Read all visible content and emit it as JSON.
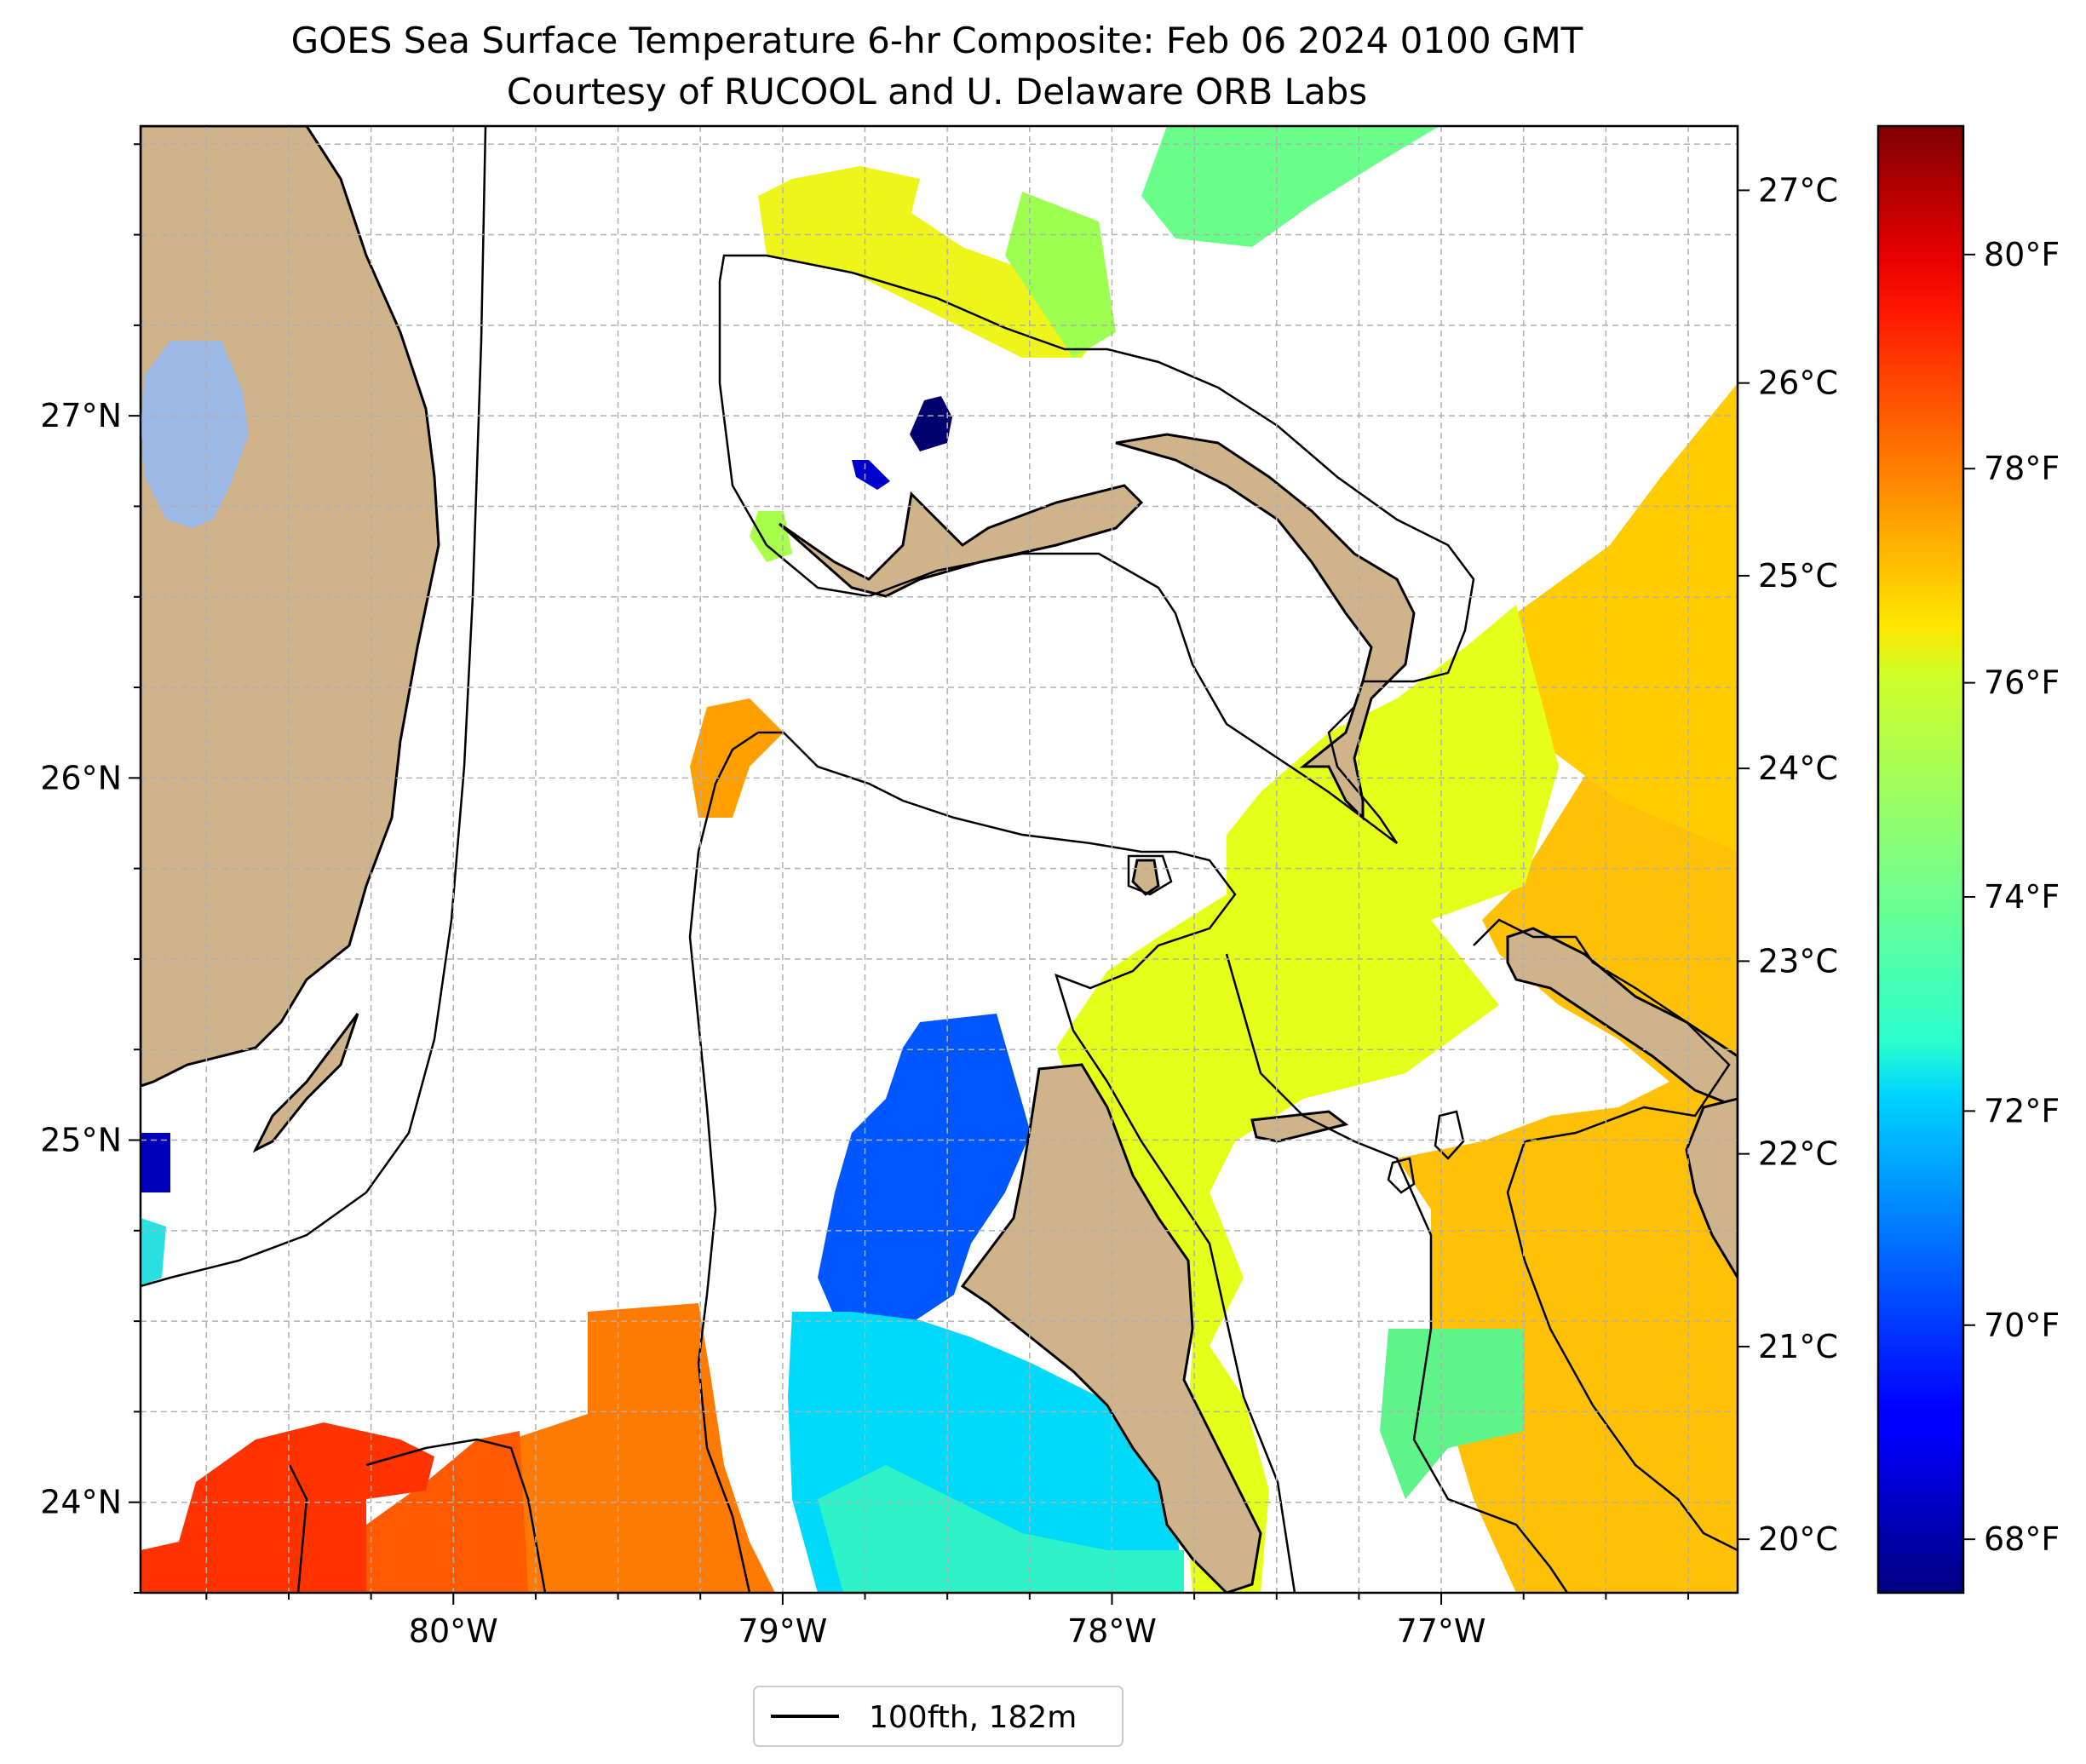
{
  "title": {
    "line1": "GOES Sea Surface Temperature 6-hr Composite: Feb 06 2024 0100 GMT",
    "line2": "Courtesy of RUCOOL and U. Delaware ORB Labs"
  },
  "map": {
    "lon_range": [
      -80.95,
      -76.1
    ],
    "lat_range": [
      23.75,
      27.8
    ],
    "lon_ticks": [
      {
        "value": -80,
        "label": "80°W"
      },
      {
        "value": -79,
        "label": "79°W"
      },
      {
        "value": -78,
        "label": "78°W"
      },
      {
        "value": -77,
        "label": "77°W"
      }
    ],
    "lat_ticks": [
      {
        "value": 24,
        "label": "24°N"
      },
      {
        "value": 25,
        "label": "25°N"
      },
      {
        "value": 26,
        "label": "26°N"
      },
      {
        "value": 27,
        "label": "27°N"
      }
    ],
    "gridlines": true,
    "colors": {
      "land": "#cfb38b",
      "lake": "#9bb9e4",
      "coast": "#000000",
      "grid": "#b0b0b0"
    }
  },
  "legend": {
    "entries": [
      {
        "label": "100fth, 182m",
        "color": "#000000"
      }
    ],
    "placement": "bottom-center"
  },
  "colorbar": {
    "colormap": "jet",
    "range_f": [
      67.5,
      81.2
    ],
    "f_ticks": [
      {
        "value": 68,
        "label": "68°F"
      },
      {
        "value": 70,
        "label": "70°F"
      },
      {
        "value": 72,
        "label": "72°F"
      },
      {
        "value": 74,
        "label": "74°F"
      },
      {
        "value": 76,
        "label": "76°F"
      },
      {
        "value": 78,
        "label": "78°F"
      },
      {
        "value": 80,
        "label": "80°F"
      }
    ],
    "c_ticks": [
      {
        "value": 20,
        "label": "20°C"
      },
      {
        "value": 21,
        "label": "21°C"
      },
      {
        "value": 22,
        "label": "22°C"
      },
      {
        "value": 23,
        "label": "23°C"
      },
      {
        "value": 24,
        "label": "24°C"
      },
      {
        "value": 25,
        "label": "25°C"
      },
      {
        "value": 26,
        "label": "26°C"
      },
      {
        "value": 27,
        "label": "27°C"
      }
    ]
  }
}
